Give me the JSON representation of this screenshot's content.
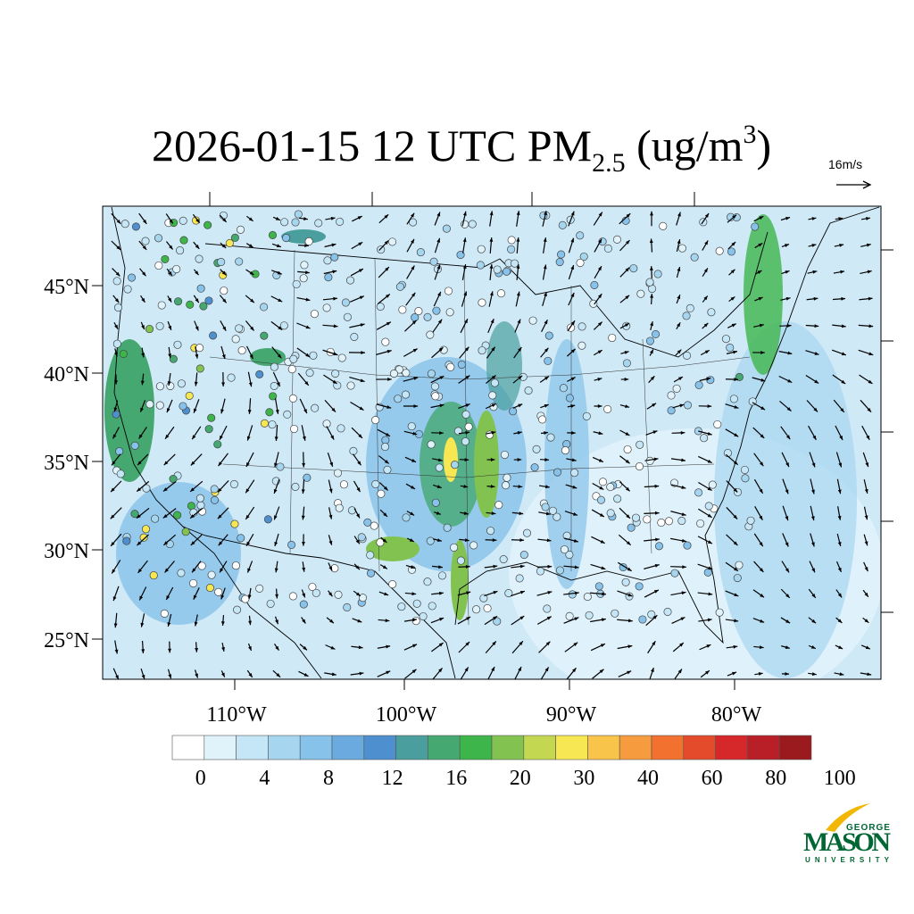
{
  "title": {
    "main": "2026-01-15 12 UTC PM",
    "sub": "2.5",
    "unit_open": " (ug/m",
    "sup": "3",
    "unit_close": ")"
  },
  "vector_reference": "16m/s",
  "lat_labels": [
    "45°N",
    "40°N",
    "35°N",
    "30°N",
    "25°N"
  ],
  "lon_labels": [
    "110°W",
    "100°W",
    "90°W",
    "80°W"
  ],
  "colorbar": {
    "labels": [
      0,
      4,
      8,
      12,
      16,
      20,
      30,
      40,
      60,
      80,
      100
    ],
    "colors": [
      "#ffffff",
      "#e0f3fb",
      "#c4e6f6",
      "#a6d5f0",
      "#86c2ea",
      "#6aaade",
      "#4e8fcf",
      "#4a9f9e",
      "#45a870",
      "#3db54a",
      "#82c250",
      "#c3d750",
      "#f7e752",
      "#f8c44a",
      "#f79c3e",
      "#f2712f",
      "#e44b2b",
      "#d6272a",
      "#b81f26",
      "#9a1a1e"
    ]
  },
  "logo": {
    "top": "GEORGE",
    "main": "MASON",
    "bottom": "UNIVERSITY"
  }
}
